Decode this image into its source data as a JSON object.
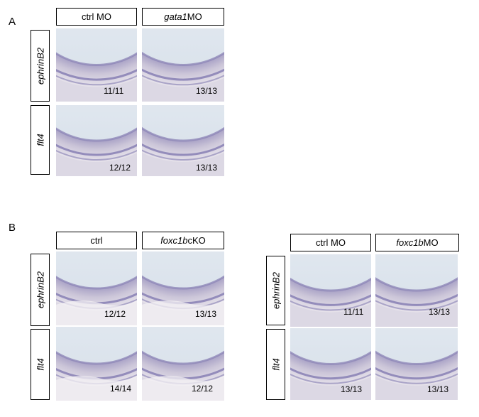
{
  "panel_a": {
    "letter": "A",
    "columns": [
      {
        "gene": "",
        "suffix": "ctrl MO"
      },
      {
        "gene": "gata1",
        "suffix": " MO"
      }
    ],
    "rows": [
      "ephrinB2",
      "flt4"
    ],
    "counts": [
      [
        "11/11",
        "13/13"
      ],
      [
        "12/12",
        "13/13"
      ]
    ]
  },
  "panel_b": {
    "letter": "B",
    "left": {
      "columns": [
        {
          "gene": "",
          "suffix": "ctrl"
        },
        {
          "gene": "foxc1b",
          "suffix": " cKO"
        }
      ],
      "rows": [
        "ephrinB2",
        "flt4"
      ],
      "counts": [
        [
          "12/12",
          "13/13"
        ],
        [
          "14/14",
          "12/12"
        ]
      ]
    },
    "right": {
      "columns": [
        {
          "gene": "",
          "suffix": "ctrl MO"
        },
        {
          "gene": "foxc1b",
          "suffix": " MO"
        }
      ],
      "rows": [
        "ephrinB2",
        "flt4"
      ],
      "counts": [
        [
          "11/11",
          "13/13"
        ],
        [
          "13/13",
          "13/13"
        ]
      ]
    }
  },
  "colors": {
    "tissue": "#cbc5d8",
    "vessel": "#7c74ad",
    "yolk_sky": "#eef2f7",
    "yolk_cool": "#dbe3ec"
  }
}
